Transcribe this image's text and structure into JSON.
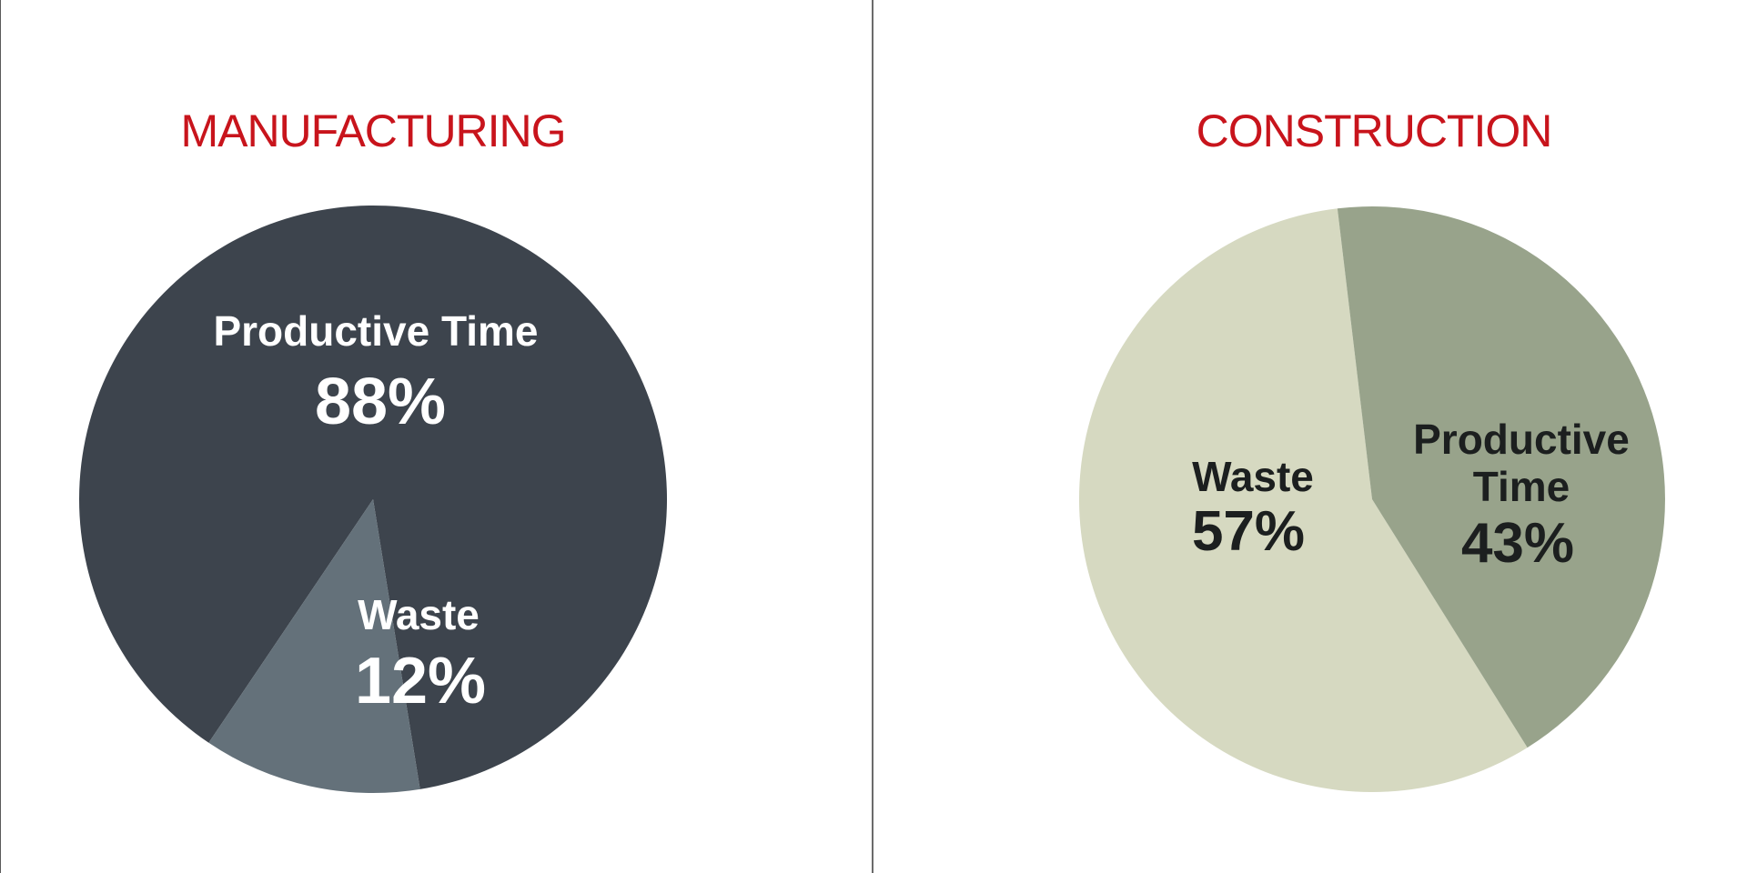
{
  "chart_data": [
    {
      "type": "pie",
      "title": "MANUFACTURING",
      "slices": [
        {
          "label": "Productive Time",
          "value": 88,
          "value_label": "88%",
          "color": "#3d444d",
          "label_color": "#ffffff"
        },
        {
          "label": "Waste",
          "value": 12,
          "value_label": "12%",
          "color": "#64717a",
          "label_color": "#ffffff"
        }
      ]
    },
    {
      "type": "pie",
      "title": "CONSTRUCTION",
      "slices": [
        {
          "label": "Waste",
          "value": 57,
          "value_label": "57%",
          "color": "#d6d9c1",
          "label_color": "#1c1f1f"
        },
        {
          "label": "Productive Time",
          "value": 43,
          "value_label": "43%",
          "color": "#98a38b",
          "label_color": "#1c1f1f"
        }
      ]
    }
  ],
  "colors": {
    "title": "#c8141c",
    "divider": "#6b6b6b"
  }
}
